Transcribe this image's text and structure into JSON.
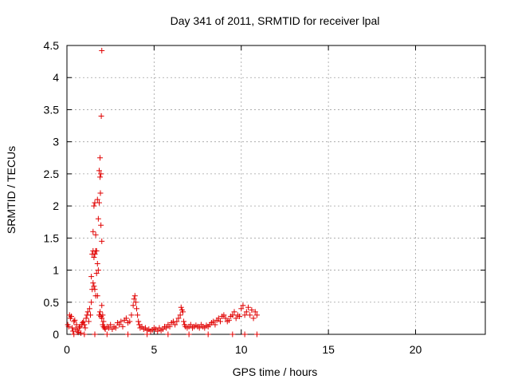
{
  "chart_data": {
    "type": "scatter",
    "title": "Day 341 of 2011, SRMTID for receiver lpal",
    "xlabel": "GPS time / hours",
    "ylabel": "SRMTID / TECUs",
    "xlim": [
      0,
      24
    ],
    "ylim": [
      0,
      4.5
    ],
    "xticks": [
      0,
      5,
      10,
      15,
      20
    ],
    "xtick_labels": [
      "0",
      "5",
      "10",
      "15",
      "20"
    ],
    "yticks": [
      0,
      0.5,
      1,
      1.5,
      2,
      2.5,
      3,
      3.5,
      4,
      4.5
    ],
    "ytick_labels": [
      "0",
      "0.5",
      "1",
      "1.5",
      "2",
      "2.5",
      "3",
      "3.5",
      "4",
      "4.5"
    ],
    "grid": true,
    "marker": "+",
    "color": "#e00000",
    "series": [
      {
        "name": "SRMTID",
        "x": [
          0.05,
          0.1,
          0.15,
          0.2,
          0.25,
          0.3,
          0.35,
          0.4,
          0.45,
          0.5,
          0.55,
          0.6,
          0.65,
          0.7,
          0.75,
          0.8,
          0.85,
          0.9,
          0.95,
          1.0,
          1.05,
          1.1,
          1.15,
          1.2,
          1.25,
          1.3,
          1.35,
          1.4,
          1.4,
          1.45,
          1.45,
          1.5,
          1.5,
          1.5,
          1.55,
          1.55,
          1.55,
          1.6,
          1.6,
          1.6,
          1.65,
          1.65,
          1.65,
          1.7,
          1.7,
          1.75,
          1.75,
          1.75,
          1.8,
          1.8,
          1.85,
          1.85,
          1.85,
          1.9,
          1.9,
          1.9,
          1.92,
          1.95,
          1.95,
          1.95,
          1.97,
          2.0,
          2.0,
          2.0,
          2.0,
          2.05,
          2.05,
          2.1,
          2.1,
          2.15,
          2.2,
          2.3,
          2.4,
          2.5,
          2.6,
          2.7,
          2.8,
          2.9,
          3.0,
          3.1,
          3.2,
          3.3,
          3.4,
          3.5,
          3.6,
          3.7,
          3.8,
          3.85,
          3.9,
          3.95,
          4.0,
          4.05,
          4.1,
          4.15,
          4.2,
          4.3,
          4.4,
          4.5,
          4.6,
          4.7,
          4.8,
          4.9,
          5.0,
          5.1,
          5.2,
          5.3,
          5.4,
          5.5,
          5.6,
          5.7,
          5.8,
          5.9,
          6.0,
          6.1,
          6.2,
          6.3,
          6.4,
          6.5,
          6.55,
          6.6,
          6.65,
          6.7,
          6.75,
          6.8,
          6.9,
          7.0,
          7.1,
          7.2,
          7.3,
          7.4,
          7.5,
          7.6,
          7.7,
          7.8,
          7.9,
          8.0,
          8.1,
          8.2,
          8.3,
          8.4,
          8.5,
          8.6,
          8.7,
          8.8,
          8.9,
          9.0,
          9.1,
          9.2,
          9.3,
          9.4,
          9.5,
          9.6,
          9.7,
          9.8,
          9.9,
          10.0,
          10.1,
          10.2,
          10.3,
          10.4,
          10.5,
          10.6,
          10.7,
          10.8,
          10.9,
          0.4,
          1.0,
          1.6,
          2.3,
          3.5,
          4.6,
          5.8,
          7.0,
          8.1,
          9.5,
          10.2,
          10.9
        ],
        "y": [
          0.15,
          0.12,
          0.3,
          0.25,
          0.28,
          0.1,
          0.05,
          0.2,
          0.22,
          0.08,
          0.15,
          0.05,
          0.03,
          0.1,
          0.12,
          0.02,
          0.15,
          0.18,
          0.2,
          0.15,
          0.1,
          0.25,
          0.3,
          0.35,
          0.2,
          0.4,
          0.3,
          0.5,
          0.9,
          0.7,
          1.25,
          0.8,
          1.3,
          1.6,
          0.75,
          1.2,
          2.0,
          0.7,
          1.25,
          2.05,
          0.6,
          1.3,
          1.55,
          0.95,
          1.3,
          0.6,
          1.1,
          2.1,
          1.0,
          1.8,
          0.3,
          2.05,
          2.55,
          0.35,
          2.45,
          2.75,
          2.2,
          0.28,
          1.7,
          2.5,
          3.4,
          0.25,
          0.45,
          1.45,
          4.42,
          0.15,
          0.3,
          0.12,
          0.2,
          0.1,
          0.08,
          0.12,
          0.1,
          0.15,
          0.08,
          0.12,
          0.1,
          0.18,
          0.15,
          0.2,
          0.12,
          0.22,
          0.25,
          0.18,
          0.2,
          0.3,
          0.45,
          0.55,
          0.6,
          0.5,
          0.4,
          0.3,
          0.2,
          0.15,
          0.1,
          0.12,
          0.08,
          0.1,
          0.06,
          0.08,
          0.05,
          0.07,
          0.1,
          0.08,
          0.05,
          0.1,
          0.06,
          0.08,
          0.12,
          0.1,
          0.15,
          0.12,
          0.18,
          0.2,
          0.15,
          0.2,
          0.25,
          0.3,
          0.42,
          0.38,
          0.35,
          0.2,
          0.15,
          0.12,
          0.1,
          0.12,
          0.15,
          0.1,
          0.12,
          0.14,
          0.12,
          0.1,
          0.15,
          0.12,
          0.1,
          0.14,
          0.12,
          0.15,
          0.18,
          0.2,
          0.15,
          0.22,
          0.25,
          0.2,
          0.28,
          0.3,
          0.25,
          0.2,
          0.22,
          0.28,
          0.3,
          0.35,
          0.25,
          0.3,
          0.28,
          0.4,
          0.45,
          0.3,
          0.35,
          0.42,
          0.3,
          0.38,
          0.25,
          0.35,
          0.3,
          0.0,
          0.0,
          0.0,
          0.0,
          0.0,
          0.0,
          0.0,
          0.0,
          0.0,
          0.0,
          0.0,
          0.0
        ]
      }
    ]
  }
}
